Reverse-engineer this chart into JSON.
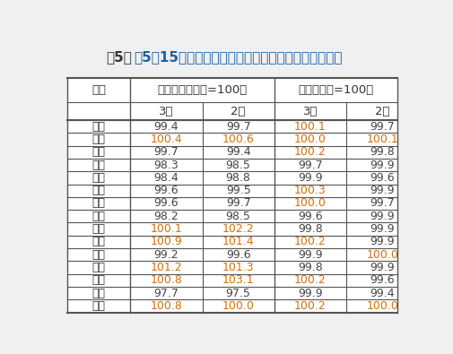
{
  "title": "表5：15个热点城市新建商品住宅销售价格变动对比表",
  "cities": [
    "北京",
    "天津",
    "上海",
    "南京",
    "无锡",
    "杭州",
    "合肥",
    "福州",
    "厦门",
    "济南",
    "郑州",
    "武汉",
    "广州",
    "深圳",
    "成都"
  ],
  "tongbi_march": [
    99.4,
    100.4,
    99.7,
    98.3,
    98.4,
    99.6,
    99.6,
    98.2,
    100.1,
    100.9,
    99.2,
    101.2,
    100.8,
    97.7,
    100.8
  ],
  "tongbi_feb": [
    99.7,
    100.6,
    99.4,
    98.5,
    98.8,
    99.5,
    99.7,
    98.5,
    102.2,
    101.4,
    99.6,
    101.3,
    103.1,
    97.5,
    100.0
  ],
  "huanbi_march": [
    100.1,
    100.0,
    100.2,
    99.7,
    99.9,
    100.3,
    100.0,
    99.6,
    99.8,
    100.2,
    99.9,
    99.8,
    100.2,
    99.9,
    100.2
  ],
  "huanbi_feb": [
    99.7,
    100.1,
    99.8,
    99.9,
    99.6,
    99.9,
    99.7,
    99.9,
    99.9,
    99.9,
    100.0,
    99.9,
    99.6,
    99.4,
    100.0
  ],
  "color_above100": "#D4700A",
  "color_below100": "#444444",
  "color_header_text": "#333333",
  "bg_color": "#f0f0f0",
  "table_bg": "#ffffff",
  "title_prefix_color": "#333333",
  "title_main_color": "#1a5fa8"
}
